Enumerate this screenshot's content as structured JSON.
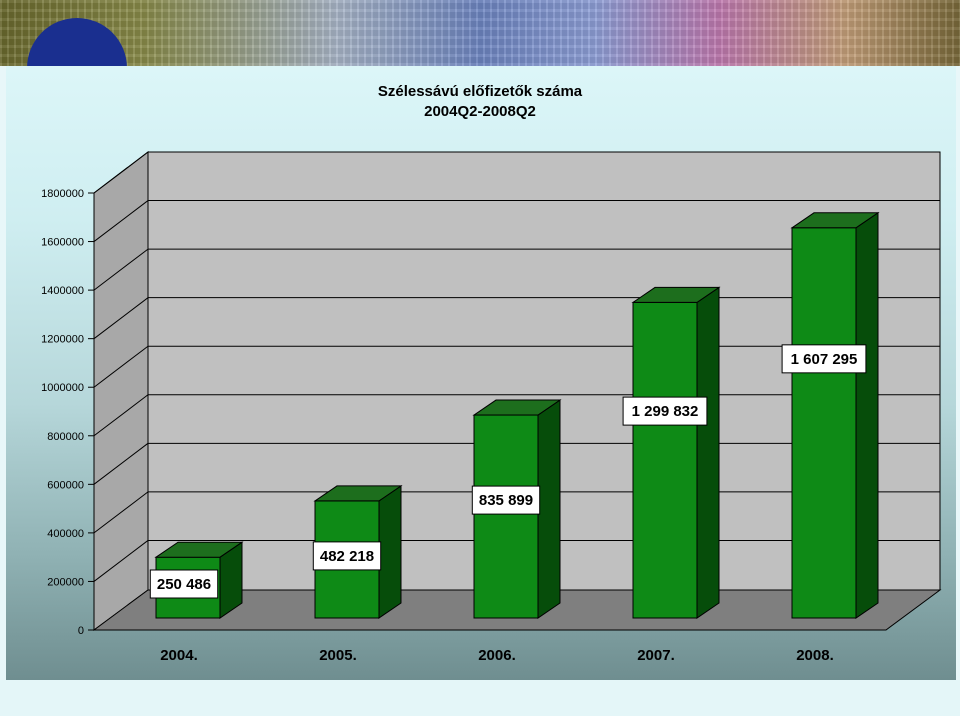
{
  "chart_data": {
    "type": "bar",
    "title": "Szélessávú előfizetők száma",
    "subtitle": "2004Q2-2008Q2",
    "categories": [
      "2004.",
      "2005.",
      "2006.",
      "2007.",
      "2008."
    ],
    "values": [
      250486,
      482218,
      835899,
      1299832,
      1607295
    ],
    "data_labels": [
      "250 486",
      "482 218",
      "835 899",
      "1 299 832",
      "1 607 295"
    ],
    "ylim": [
      0,
      1800000
    ],
    "yticks": [
      "0",
      "200000",
      "400000",
      "600000",
      "800000",
      "1000000",
      "1200000",
      "1400000",
      "1600000",
      "1800000"
    ],
    "grid": true,
    "legend": "none",
    "colors": {
      "bar": "#0e8a16",
      "bar_side": "#064d0a",
      "bar_top": "#1d6e1d",
      "plot_back": "#c0c0c0",
      "floor": "#808080"
    }
  }
}
